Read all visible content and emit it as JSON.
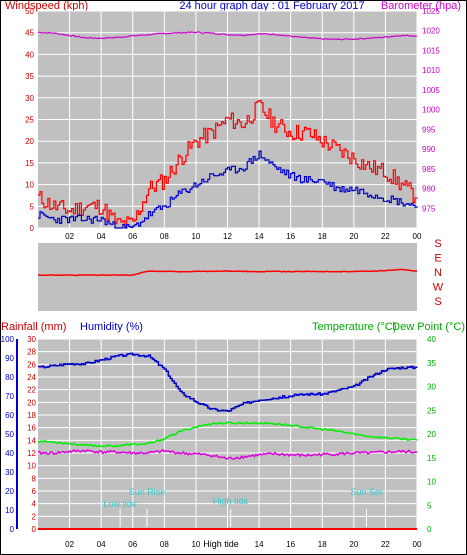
{
  "header": {
    "wind_label": "Windspeed (kph)",
    "title": "24 hour graph day : 01 February 2017",
    "baro_label": "Barometer (hpa)"
  },
  "labels": {
    "rain_label": "Rainfall (mm)",
    "hum_label": "Humidity (%)",
    "temp_label": "Temperature (°C)",
    "dew_label": "Dew Point (°C)",
    "low_tide": "Low tide",
    "sun_rise": "Sun Rise",
    "high_tide_1": "High tide",
    "high_tide_2": "High tide",
    "sun_set": "Sun Set"
  },
  "colors": {
    "plot_bg": "#c0c0c0",
    "grid": "#ffffff",
    "wind_gust": "#ff0000",
    "wind_avg": "#0000cc",
    "barometer": "#cc00cc",
    "direction": "#ff0000",
    "humidity": "#0000cc",
    "temperature": "#00ee00",
    "dewpoint": "#dd00dd",
    "rainfall": "#ff0000",
    "wind_axis": "#cc0000",
    "baro_axis": "#cc00cc",
    "rain_axis": "#cc0000",
    "hum_axis": "#0000cc",
    "temp_axis": "#00aa00",
    "event": "#33cccc"
  },
  "chart_data": [
    {
      "type": "line",
      "x_ticks": [
        "02",
        "04",
        "06",
        "08",
        "10",
        "12",
        "14",
        "16",
        "18",
        "20",
        "22",
        "00"
      ],
      "ylabel": "Windspeed (kph)",
      "ylim": [
        0,
        50
      ],
      "y_ticks": [
        0,
        5,
        10,
        15,
        20,
        25,
        30,
        35,
        40,
        45,
        50
      ],
      "y2label": "Barometer (hpa)",
      "y2lim": [
        970,
        1025
      ],
      "y2_ticks": [
        975,
        980,
        985,
        990,
        995,
        1000,
        1005,
        1010,
        1015,
        1020,
        1025
      ],
      "grid": true,
      "x": [
        0,
        1,
        2,
        3,
        4,
        5,
        6,
        7,
        8,
        9,
        10,
        11,
        12,
        13,
        14,
        15,
        16,
        17,
        18,
        19,
        20,
        21,
        22,
        23,
        24
      ],
      "series": [
        {
          "values": [
            7,
            5,
            4,
            5,
            5,
            1,
            1,
            9,
            11,
            16,
            20,
            22,
            25,
            24,
            28,
            24,
            22,
            22,
            20,
            18,
            16,
            14,
            13,
            10,
            7
          ],
          "style": "gust"
        },
        {
          "values": [
            3,
            2,
            2,
            2,
            2,
            0,
            0,
            3,
            5,
            8,
            10,
            12,
            13,
            14,
            17,
            14,
            12,
            11,
            11,
            9,
            9,
            8,
            7,
            6,
            5
          ],
          "style": "average"
        },
        {
          "values": [
            1019.6,
            1019.4,
            1018.8,
            1018.2,
            1018.1,
            1018.3,
            1018.7,
            1019.0,
            1019.3,
            1019.5,
            1019.6,
            1019.4,
            1019.0,
            1018.9,
            1019.2,
            1019.1,
            1018.6,
            1018.2,
            1017.9,
            1017.8,
            1017.9,
            1018.1,
            1018.4,
            1018.8,
            1018.7
          ],
          "axis": "right"
        }
      ]
    },
    {
      "type": "line",
      "y_ticks": [
        "S",
        "E",
        "N",
        "W",
        "S"
      ],
      "x": [
        0,
        1,
        2,
        3,
        4,
        5,
        6,
        7,
        8,
        9,
        10,
        11,
        12,
        13,
        14,
        15,
        16,
        17,
        18,
        19,
        20,
        21,
        22,
        23,
        24
      ],
      "series": [
        {
          "values": [
            190,
            190,
            190,
            190,
            190,
            190,
            190,
            212,
            210,
            208,
            210,
            210,
            212,
            210,
            208,
            210,
            208,
            210,
            209,
            208,
            210,
            211,
            214,
            220,
            210
          ]
        }
      ]
    },
    {
      "type": "line",
      "x_ticks": [
        "02",
        "04",
        "06",
        "08",
        "10",
        "12",
        "14",
        "16",
        "18",
        "20",
        "22",
        "00"
      ],
      "ylabel_left_1": "Rainfall (mm)",
      "ylim_rain": [
        0,
        30
      ],
      "rain_ticks": [
        0,
        2,
        4,
        6,
        8,
        10,
        12,
        14,
        16,
        18,
        20,
        22,
        24,
        26,
        28,
        30
      ],
      "ylabel_left_2": "Humidity (%)",
      "ylim_hum": [
        0,
        100
      ],
      "hum_ticks": [
        0,
        10,
        20,
        30,
        40,
        50,
        60,
        70,
        80,
        90,
        100
      ],
      "ylabel_right": "Temperature (°C)",
      "ylim_temp": [
        0,
        40
      ],
      "temp_ticks": [
        0,
        5,
        10,
        15,
        20,
        25,
        30,
        35,
        40
      ],
      "grid": true,
      "x": [
        0,
        1,
        2,
        3,
        4,
        5,
        6,
        7,
        8,
        9,
        10,
        11,
        12,
        13,
        14,
        15,
        16,
        17,
        18,
        19,
        20,
        21,
        22,
        23,
        24
      ],
      "series": [
        {
          "values": [
            85,
            86,
            87,
            87,
            89,
            91,
            92,
            91,
            84,
            72,
            67,
            63,
            62,
            66,
            68,
            69,
            70,
            71,
            71,
            73,
            75,
            80,
            84,
            85,
            85
          ]
        },
        {
          "values": [
            18.5,
            18.3,
            18.0,
            17.6,
            17.5,
            17.5,
            17.8,
            17.9,
            19.0,
            20.5,
            21.5,
            22.2,
            22.3,
            22.3,
            22.3,
            22.2,
            21.8,
            21.4,
            21.0,
            20.6,
            20.0,
            19.5,
            19.2,
            19.0,
            18.7
          ]
        },
        {
          "values": [
            16.0,
            16.0,
            16.3,
            16.5,
            16.2,
            16.2,
            16.0,
            16.0,
            16.4,
            16.0,
            15.8,
            15.5,
            14.8,
            15.2,
            15.6,
            15.8,
            15.6,
            15.5,
            15.7,
            15.8,
            16.0,
            16.0,
            16.2,
            16.3,
            16.2
          ]
        },
        {
          "values": [
            0,
            0,
            0,
            0,
            0,
            0,
            0,
            0,
            0,
            0,
            0,
            0,
            0,
            0,
            0,
            0,
            0,
            0,
            0,
            0,
            0,
            0,
            0,
            0,
            0
          ]
        }
      ],
      "events": [
        {
          "label": "Low tide",
          "x": 5.2
        },
        {
          "label": "Sun Rise",
          "x": 6.9
        },
        {
          "label": "High tide",
          "x": 12.2
        },
        {
          "label": "Sun Set",
          "x": 20.8
        }
      ]
    }
  ]
}
